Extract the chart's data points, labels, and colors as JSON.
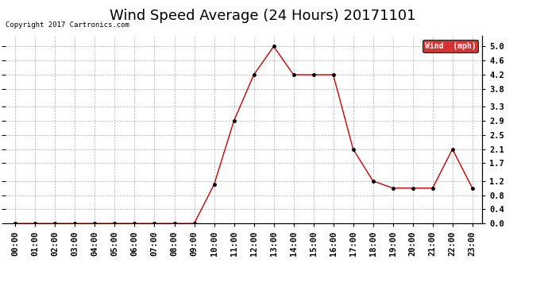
{
  "title": "Wind Speed Average (24 Hours) 20171101",
  "copyright": "Copyright 2017 Cartronics.com",
  "legend_label": "Wind  (mph)",
  "hours": [
    "00:00",
    "01:00",
    "02:00",
    "03:00",
    "04:00",
    "05:00",
    "06:00",
    "07:00",
    "08:00",
    "09:00",
    "10:00",
    "11:00",
    "12:00",
    "13:00",
    "14:00",
    "15:00",
    "16:00",
    "17:00",
    "18:00",
    "19:00",
    "20:00",
    "21:00",
    "22:00",
    "23:00"
  ],
  "values": [
    0.0,
    0.0,
    0.0,
    0.0,
    0.0,
    0.0,
    0.0,
    0.0,
    0.0,
    0.0,
    1.1,
    2.9,
    4.2,
    5.0,
    4.2,
    4.2,
    4.2,
    2.1,
    1.2,
    1.0,
    1.0,
    1.0,
    2.1,
    1.0
  ],
  "line_color": "#cc0000",
  "marker_color": "#000000",
  "bg_color": "#ffffff",
  "grid_color": "#b0b0b0",
  "ylim": [
    0.0,
    5.3
  ],
  "yticks": [
    0.0,
    0.4,
    0.8,
    1.2,
    1.7,
    2.1,
    2.5,
    2.9,
    3.3,
    3.8,
    4.2,
    4.6,
    5.0
  ],
  "title_fontsize": 13,
  "tick_fontsize": 7.5,
  "legend_bg": "#cc0000",
  "legend_text_color": "#ffffff"
}
